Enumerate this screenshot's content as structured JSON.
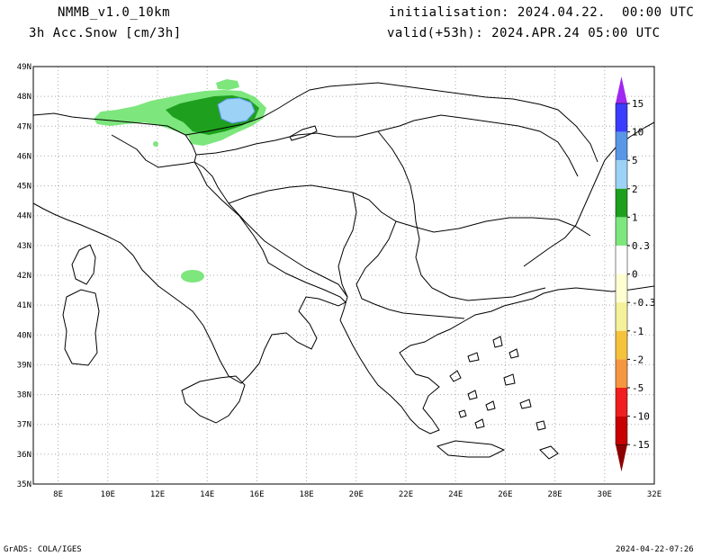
{
  "header": {
    "model": "NMMB_v1.0_10km",
    "field": "3h Acc.Snow [cm/3h]",
    "init_label": "initialisation:",
    "init_value": "2024.04.22.  00:00 UTC",
    "valid_label": "valid(+53h):",
    "valid_value": "2024.APR.24 05:00 UTC"
  },
  "footer": {
    "left": "GrADS: COLA/IGES",
    "right": "2024-04-22-07:26"
  },
  "axes": {
    "lon_labels": [
      "8E",
      "10E",
      "12E",
      "14E",
      "16E",
      "18E",
      "20E",
      "22E",
      "24E",
      "26E",
      "28E",
      "30E",
      "32E"
    ],
    "lat_labels": [
      "49N",
      "48N",
      "47N",
      "46N",
      "45N",
      "44N",
      "43N",
      "42N",
      "41N",
      "40N",
      "39N",
      "38N",
      "37N",
      "36N",
      "35N"
    ],
    "lon_range": [
      7,
      32
    ],
    "lat_range": [
      35,
      49
    ]
  },
  "colorbar": {
    "levels": [
      {
        "label": "15",
        "color": "#8c28e6"
      },
      {
        "label": "10",
        "color": "#3c3cff"
      },
      {
        "label": "5",
        "color": "#5a96e6"
      },
      {
        "label": "2",
        "color": "#9bd2f5"
      },
      {
        "label": "1",
        "color": "#1ea01e"
      },
      {
        "label": "0.3",
        "color": "#7de67d"
      },
      {
        "label": "0",
        "color": "#ffffff"
      },
      {
        "label": "-0.3",
        "color": "#ffffd2"
      },
      {
        "label": "-1",
        "color": "#f5f09a"
      },
      {
        "label": "-2",
        "color": "#f5c23c"
      },
      {
        "label": "-5",
        "color": "#f59640"
      },
      {
        "label": "-10",
        "color": "#f01e1e"
      },
      {
        "label": "-15",
        "color": "#c80000"
      }
    ],
    "top_color": "#a028f0",
    "bottom_color": "#8c0000"
  }
}
